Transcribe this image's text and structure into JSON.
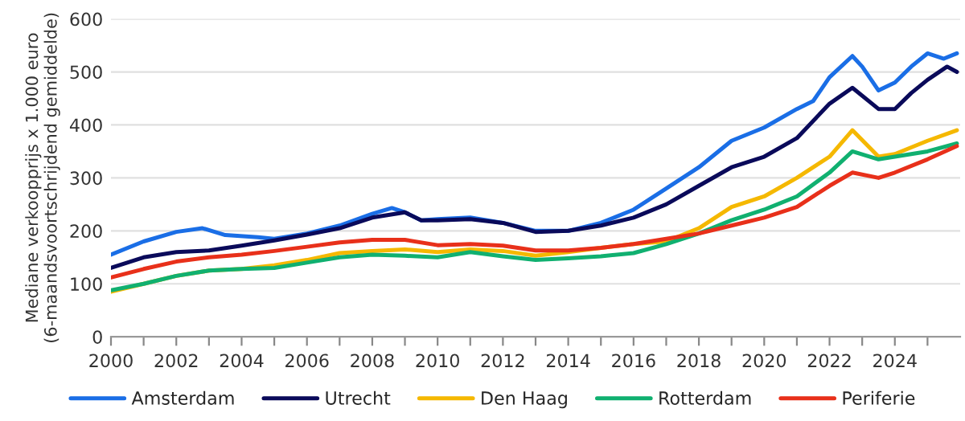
{
  "chart_data": {
    "type": "line",
    "ylabel": "Mediane verkoopprijs x 1.000 euro (6-maandsvoortschrijdend gemiddelde)",
    "xlim": [
      2000,
      2026
    ],
    "ylim": [
      0,
      600
    ],
    "yticks": [
      0,
      100,
      200,
      300,
      400,
      500,
      600
    ],
    "xticks": [
      2000,
      {
        "value": 2001,
        "label": null
      },
      2002,
      {
        "value": 2003,
        "label": null
      },
      2004,
      {
        "value": 2005,
        "label": null
      },
      2006,
      {
        "value": 2007,
        "label": null
      },
      2008,
      {
        "value": 2009,
        "label": null
      },
      2010,
      {
        "value": 2011,
        "label": null
      },
      2012,
      {
        "value": 2013,
        "label": null
      },
      2014,
      {
        "value": 2015,
        "label": null
      },
      2016,
      {
        "value": 2017,
        "label": null
      },
      2018,
      {
        "value": 2019,
        "label": null
      },
      2020,
      {
        "value": 2021,
        "label": null
      },
      2022,
      {
        "value": 2023,
        "label": null
      },
      2024,
      {
        "value": 2025,
        "label": null
      }
    ],
    "grid": "y",
    "legend": "bottom",
    "marker": "none",
    "line_style": "solid",
    "series": [
      {
        "name": "Amsterdam",
        "color": "#1a6ee6",
        "x": [
          2000,
          2001,
          2002,
          2002.8,
          2003.5,
          2004.5,
          2005,
          2006,
          2007,
          2008,
          2008.6,
          2009,
          2009.5,
          2010,
          2011,
          2012,
          2013,
          2014,
          2015,
          2016,
          2017,
          2018,
          2019,
          2020,
          2021,
          2021.5,
          2022,
          2022.7,
          2023,
          2023.5,
          2024,
          2024.5,
          2025,
          2025.5,
          2025.9
        ],
        "values": [
          155,
          180,
          198,
          205,
          192,
          188,
          185,
          195,
          210,
          232,
          243,
          235,
          220,
          222,
          225,
          215,
          200,
          200,
          215,
          240,
          280,
          320,
          370,
          395,
          430,
          445,
          490,
          530,
          510,
          465,
          480,
          510,
          535,
          525,
          535
        ]
      },
      {
        "name": "Utrecht",
        "color": "#0a0a5a",
        "x": [
          2000,
          2001,
          2002,
          2003,
          2004,
          2005,
          2006,
          2007,
          2008,
          2009,
          2009.5,
          2010,
          2011,
          2012,
          2013,
          2014,
          2015,
          2016,
          2017,
          2018,
          2019,
          2020,
          2021,
          2022,
          2022.7,
          2023.5,
          2024,
          2024.5,
          2025,
          2025.6,
          2025.9
        ],
        "values": [
          130,
          150,
          160,
          163,
          172,
          182,
          193,
          205,
          225,
          235,
          220,
          220,
          222,
          215,
          198,
          200,
          210,
          225,
          250,
          285,
          320,
          340,
          375,
          440,
          470,
          430,
          430,
          460,
          485,
          510,
          500
        ]
      },
      {
        "name": "Den Haag",
        "color": "#f5b800",
        "x": [
          2000,
          2001,
          2002,
          2003,
          2004,
          2005,
          2006,
          2007,
          2008,
          2009,
          2010,
          2011,
          2012,
          2013,
          2014,
          2015,
          2016,
          2017,
          2018,
          2019,
          2020,
          2021,
          2022,
          2022.7,
          2023.5,
          2024,
          2025,
          2025.9
        ],
        "values": [
          85,
          100,
          115,
          125,
          128,
          135,
          145,
          158,
          162,
          165,
          160,
          165,
          162,
          153,
          160,
          168,
          175,
          180,
          205,
          245,
          265,
          300,
          340,
          390,
          340,
          345,
          370,
          390
        ]
      },
      {
        "name": "Rotterdam",
        "color": "#10b070",
        "x": [
          2000,
          2001,
          2002,
          2003,
          2004,
          2005,
          2006,
          2007,
          2008,
          2009,
          2010,
          2011,
          2012,
          2013,
          2014,
          2015,
          2016,
          2017,
          2018,
          2019,
          2020,
          2021,
          2022,
          2022.7,
          2023.5,
          2024,
          2025,
          2025.9
        ],
        "values": [
          88,
          100,
          115,
          125,
          128,
          130,
          140,
          150,
          155,
          153,
          150,
          160,
          152,
          145,
          148,
          152,
          158,
          175,
          195,
          220,
          240,
          265,
          310,
          350,
          335,
          340,
          350,
          365
        ]
      },
      {
        "name": "Periferie",
        "color": "#e8301a",
        "x": [
          2000,
          2001,
          2002,
          2003,
          2004,
          2005,
          2006,
          2007,
          2008,
          2009,
          2010,
          2011,
          2012,
          2013,
          2014,
          2015,
          2016,
          2017,
          2018,
          2019,
          2020,
          2021,
          2022,
          2022.7,
          2023.5,
          2024,
          2025,
          2025.9
        ],
        "values": [
          112,
          128,
          142,
          150,
          155,
          162,
          170,
          178,
          183,
          183,
          173,
          175,
          172,
          163,
          163,
          168,
          175,
          185,
          195,
          210,
          225,
          245,
          285,
          310,
          300,
          310,
          335,
          360
        ]
      }
    ]
  }
}
